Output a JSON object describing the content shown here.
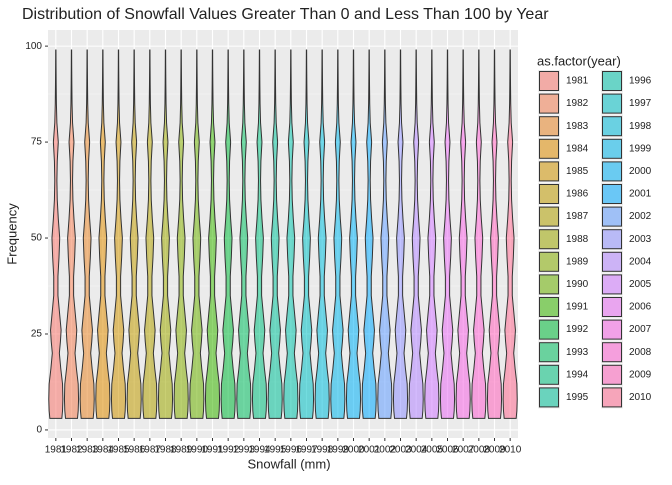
{
  "chart_data": {
    "type": "violin",
    "title": "Distribution of Snowfall Values Greater Than 0 and Less Than 100 by Year",
    "x_label": "Snowfall (mm)",
    "y_label": "Frequency",
    "legend_title": "as.factor(year)",
    "categories": [
      "1981",
      "1982",
      "1983",
      "1984",
      "1985",
      "1986",
      "1987",
      "1988",
      "1989",
      "1990",
      "1991",
      "1992",
      "1993",
      "1994",
      "1995",
      "1996",
      "1997",
      "1998",
      "1999",
      "2000",
      "2001",
      "2002",
      "2003",
      "2004",
      "2005",
      "2006",
      "2007",
      "2008",
      "2009",
      "2010"
    ],
    "colors": [
      "#F8766D",
      "#F27D52",
      "#E88526",
      "#DE8C00",
      "#D09400",
      "#C09B00",
      "#B0A100",
      "#9DA700",
      "#85AD00",
      "#6BB100",
      "#39B600",
      "#00BA38",
      "#00BD5F",
      "#00BF7D",
      "#00C097",
      "#00C1AA",
      "#00BFC4",
      "#00BBDA",
      "#00B6EB",
      "#00B0F6",
      "#00A9FF",
      "#619CFF",
      "#8F91FF",
      "#B385FF",
      "#CF78FF",
      "#E76BF3",
      "#F564E3",
      "#FD61D1",
      "#FF62BC",
      "#FF6C91"
    ],
    "min": [
      3,
      3,
      3,
      3,
      3,
      3,
      3,
      3,
      3,
      3,
      3,
      3,
      3,
      3,
      3,
      3,
      3,
      3,
      3,
      3,
      3,
      3,
      3,
      3,
      3,
      3,
      3,
      3,
      3,
      3
    ],
    "max": [
      99,
      99,
      99,
      99,
      99,
      99,
      99,
      99,
      99,
      99,
      99,
      99,
      99,
      99,
      99,
      99,
      99,
      99,
      99,
      99,
      99,
      99,
      99,
      99,
      99,
      99,
      99,
      99,
      99,
      99
    ],
    "profile": {
      "y": [
        3,
        5,
        8,
        12,
        16,
        20,
        23,
        26,
        30,
        35,
        40,
        45,
        50,
        55,
        60,
        65,
        70,
        75,
        80,
        85,
        90,
        95,
        99
      ],
      "width": [
        0.85,
        0.95,
        1,
        0.95,
        0.7,
        0.5,
        0.65,
        0.75,
        0.55,
        0.3,
        0.3,
        0.45,
        0.55,
        0.35,
        0.2,
        0.15,
        0.2,
        0.35,
        0.15,
        0.08,
        0.05,
        0.03,
        0.02
      ]
    },
    "ylim": [
      -2.1,
      104.2
    ],
    "yticks": [
      0,
      25,
      50,
      75,
      100
    ],
    "grid": true,
    "legend_position": "right"
  }
}
